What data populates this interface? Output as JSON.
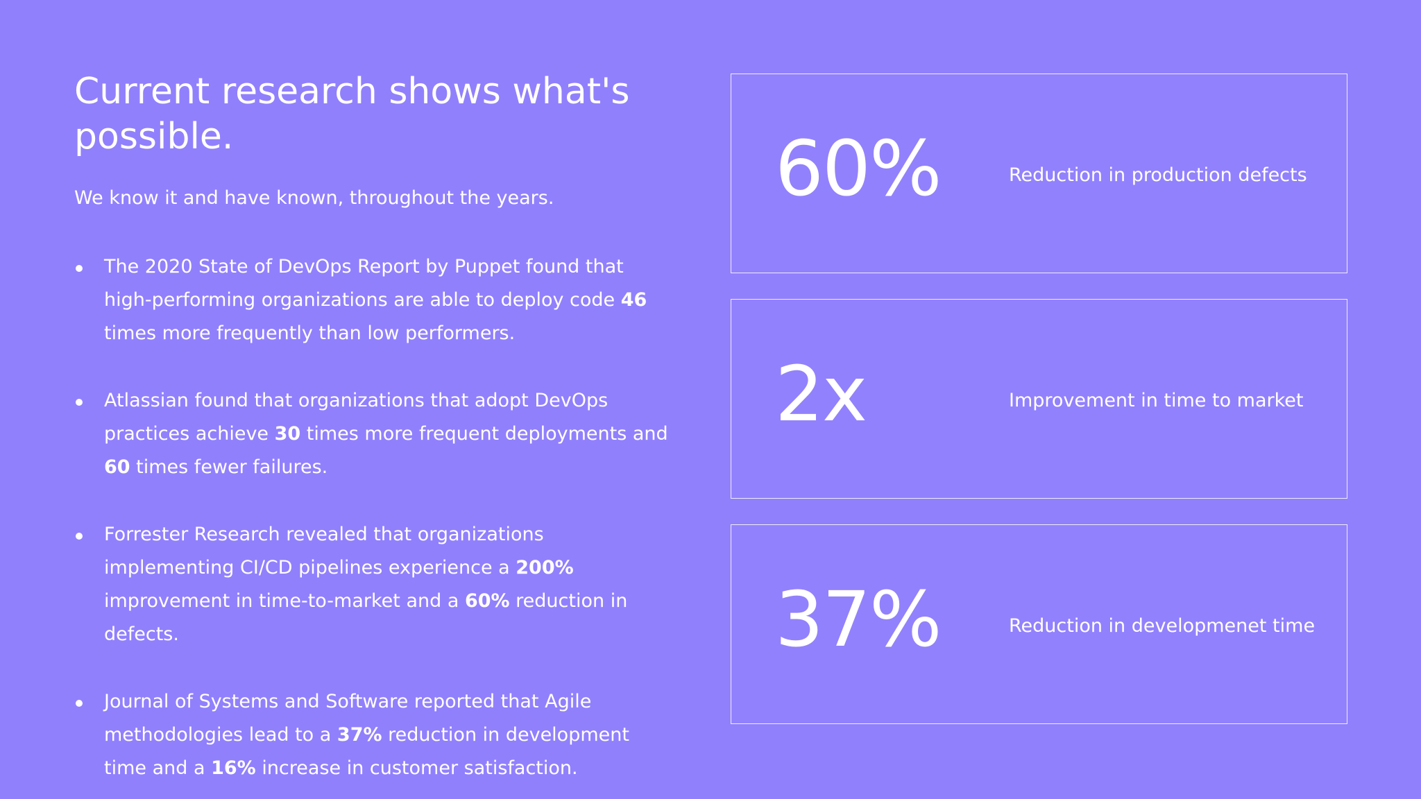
{
  "slide": {
    "title": "Current research shows what's possible.",
    "subtitle": "We know it and have known, throughout the years.",
    "bullets": [
      {
        "segments": [
          {
            "text": "The 2020 State of DevOps Report by Puppet found that high-performing organizations are able to deploy code ",
            "bold": false
          },
          {
            "text": "46",
            "bold": true
          },
          {
            "text": " times more frequently than low performers.",
            "bold": false
          }
        ]
      },
      {
        "segments": [
          {
            "text": "Atlassian found that organizations that adopt DevOps practices achieve ",
            "bold": false
          },
          {
            "text": "30",
            "bold": true
          },
          {
            "text": " times more frequent deployments and ",
            "bold": false
          },
          {
            "text": "60",
            "bold": true
          },
          {
            "text": " times fewer failures.",
            "bold": false
          }
        ]
      },
      {
        "segments": [
          {
            "text": "Forrester Research revealed that organizations implementing CI/CD pipelines experience a ",
            "bold": false
          },
          {
            "text": "200%",
            "bold": true
          },
          {
            "text": " improvement in time-to-market and a ",
            "bold": false
          },
          {
            "text": "60%",
            "bold": true
          },
          {
            "text": " reduction in defects.",
            "bold": false
          }
        ]
      },
      {
        "segments": [
          {
            "text": "Journal of Systems and Software reported that Agile methodologies lead to a ",
            "bold": false
          },
          {
            "text": "37%",
            "bold": true
          },
          {
            "text": " reduction in development time and a ",
            "bold": false
          },
          {
            "text": "16%",
            "bold": true
          },
          {
            "text": " increase in customer satisfaction.",
            "bold": false
          }
        ]
      }
    ],
    "stats": [
      {
        "value": "60%",
        "label": "Reduction in production defects"
      },
      {
        "value": "2x",
        "label": "Improvement in time to market"
      },
      {
        "value": "37%",
        "label": "Reduction in developmenet time"
      }
    ],
    "colors": {
      "background": "#9180fc",
      "text": "#ffffff",
      "border": "#ffffff"
    }
  }
}
